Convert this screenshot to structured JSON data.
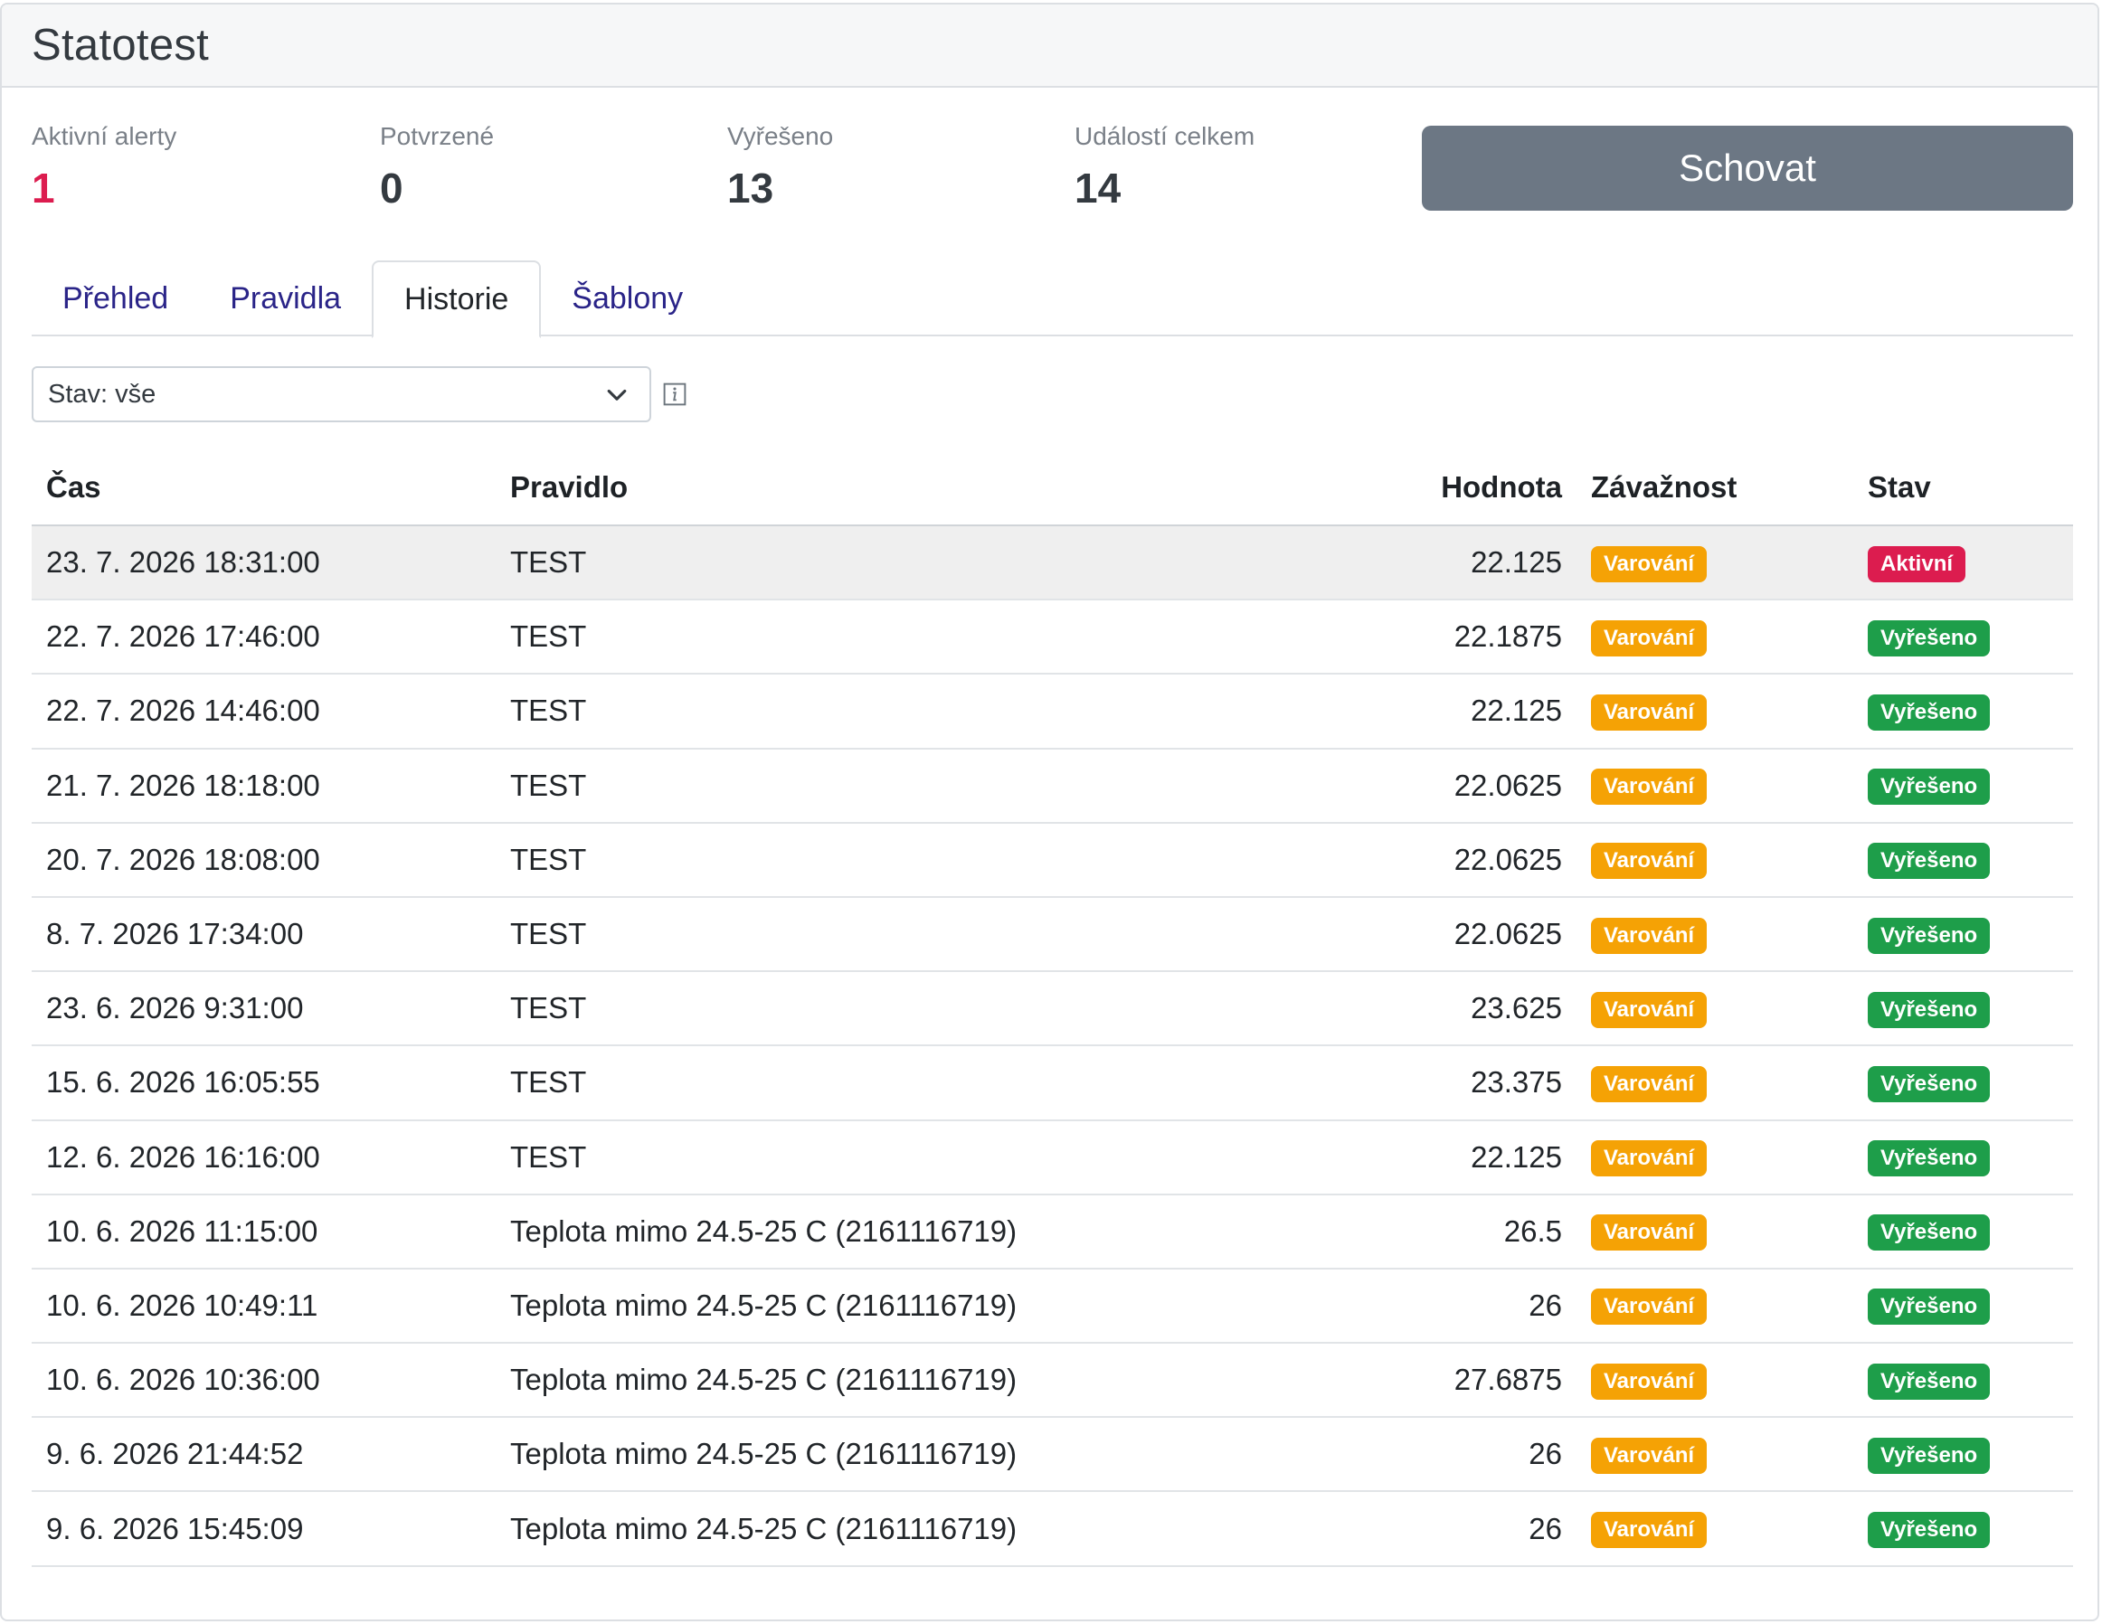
{
  "header": {
    "title": "Statotest"
  },
  "stats": [
    {
      "label": "Aktivní alerty",
      "value": "1"
    },
    {
      "label": "Potvrzené",
      "value": "0"
    },
    {
      "label": "Vyřešeno",
      "value": "13"
    },
    {
      "label": "Událostí celkem",
      "value": "14"
    }
  ],
  "hide_button": "Schovat",
  "tabs": [
    {
      "label": "Přehled"
    },
    {
      "label": "Pravidla"
    },
    {
      "label": "Historie"
    },
    {
      "label": "Šablony"
    }
  ],
  "filter": {
    "value": "Stav: vše"
  },
  "table": {
    "headers": {
      "time": "Čas",
      "rule": "Pravidlo",
      "value": "Hodnota",
      "severity": "Závažnost",
      "state": "Stav"
    },
    "rows": [
      {
        "time": "23. 7. 2026 18:31:00",
        "rule": "TEST",
        "value": "22.125",
        "severity": "Varování",
        "state": "Aktivní"
      },
      {
        "time": "22. 7. 2026 17:46:00",
        "rule": "TEST",
        "value": "22.1875",
        "severity": "Varování",
        "state": "Vyřešeno"
      },
      {
        "time": "22. 7. 2026 14:46:00",
        "rule": "TEST",
        "value": "22.125",
        "severity": "Varování",
        "state": "Vyřešeno"
      },
      {
        "time": "21. 7. 2026 18:18:00",
        "rule": "TEST",
        "value": "22.0625",
        "severity": "Varování",
        "state": "Vyřešeno"
      },
      {
        "time": "20. 7. 2026 18:08:00",
        "rule": "TEST",
        "value": "22.0625",
        "severity": "Varování",
        "state": "Vyřešeno"
      },
      {
        "time": "8. 7. 2026 17:34:00",
        "rule": "TEST",
        "value": "22.0625",
        "severity": "Varování",
        "state": "Vyřešeno"
      },
      {
        "time": "23. 6. 2026 9:31:00",
        "rule": "TEST",
        "value": "23.625",
        "severity": "Varování",
        "state": "Vyřešeno"
      },
      {
        "time": "15. 6. 2026 16:05:55",
        "rule": "TEST",
        "value": "23.375",
        "severity": "Varování",
        "state": "Vyřešeno"
      },
      {
        "time": "12. 6. 2026 16:16:00",
        "rule": "TEST",
        "value": "22.125",
        "severity": "Varování",
        "state": "Vyřešeno"
      },
      {
        "time": "10. 6. 2026 11:15:00",
        "rule": "Teplota mimo 24.5-25 C (2161116719)",
        "value": "26.5",
        "severity": "Varování",
        "state": "Vyřešeno"
      },
      {
        "time": "10. 6. 2026 10:49:11",
        "rule": "Teplota mimo 24.5-25 C (2161116719)",
        "value": "26",
        "severity": "Varování",
        "state": "Vyřešeno"
      },
      {
        "time": "10. 6. 2026 10:36:00",
        "rule": "Teplota mimo 24.5-25 C (2161116719)",
        "value": "27.6875",
        "severity": "Varování",
        "state": "Vyřešeno"
      },
      {
        "time": "9. 6. 2026 21:44:52",
        "rule": "Teplota mimo 24.5-25 C (2161116719)",
        "value": "26",
        "severity": "Varování",
        "state": "Vyřešeno"
      },
      {
        "time": "9. 6. 2026 15:45:09",
        "rule": "Teplota mimo 24.5-25 C (2161116719)",
        "value": "26",
        "severity": "Varování",
        "state": "Vyřešeno"
      }
    ]
  },
  "colors": {
    "active": "#dc1c4f",
    "resolved": "#1e9e4a",
    "warning": "#f5a205",
    "button": "#6c7784",
    "tab_link": "#2a2488"
  },
  "icons": {
    "select": "chevron-down-icon",
    "info": "info-icon"
  }
}
